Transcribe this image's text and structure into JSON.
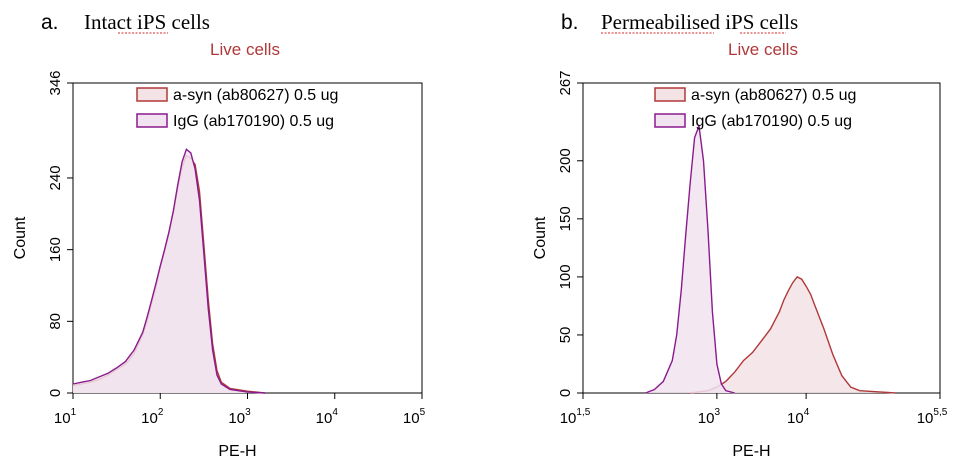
{
  "colors": {
    "asyn": "#b0383a",
    "igg": "#8a1a8e",
    "asyn_fill": "#f3e3e5",
    "igg_fill": "#f1e3ef",
    "subtitle": "#b0383a"
  },
  "chart_data": [
    {
      "type": "area",
      "panel_letter": "a.",
      "title": "Intact iPS cells",
      "subtitle": "Live cells",
      "xlabel": "PE-H",
      "ylabel": "Count",
      "xscale": "log",
      "xlim": [
        1,
        5
      ],
      "ylim": [
        0,
        346
      ],
      "xticks": [
        {
          "base": "10",
          "exp": "1",
          "v": 1
        },
        {
          "base": "10",
          "exp": "2",
          "v": 2
        },
        {
          "base": "10",
          "exp": "3",
          "v": 3
        },
        {
          "base": "10",
          "exp": "4",
          "v": 4
        },
        {
          "base": "10",
          "exp": "5",
          "v": 5
        }
      ],
      "yticks": [
        "0",
        "80",
        "160",
        "240",
        "346"
      ],
      "ytick_values": [
        0,
        80,
        160,
        240,
        346
      ],
      "legend_position": "top-right",
      "series": [
        {
          "name": "a-syn (ab80627) 0.5 ug",
          "color_key": "asyn",
          "x": [
            1.0,
            1.1,
            1.2,
            1.3,
            1.4,
            1.5,
            1.6,
            1.7,
            1.8,
            1.85,
            1.9,
            1.95,
            2.0,
            2.05,
            2.1,
            2.15,
            2.2,
            2.25,
            2.3,
            2.35,
            2.4,
            2.45,
            2.5,
            2.55,
            2.6,
            2.65,
            2.7,
            2.8,
            3.0,
            3.2
          ],
          "y": [
            8,
            10,
            12,
            15,
            20,
            26,
            32,
            44,
            65,
            80,
            100,
            118,
            140,
            158,
            178,
            200,
            228,
            252,
            265,
            262,
            255,
            225,
            165,
            105,
            55,
            25,
            12,
            5,
            2,
            0
          ]
        },
        {
          "name": "IgG (ab170190) 0.5 ug",
          "color_key": "igg",
          "x": [
            1.0,
            1.1,
            1.2,
            1.3,
            1.4,
            1.5,
            1.6,
            1.7,
            1.8,
            1.85,
            1.9,
            1.95,
            2.0,
            2.05,
            2.1,
            2.15,
            2.2,
            2.25,
            2.3,
            2.35,
            2.4,
            2.45,
            2.5,
            2.55,
            2.6,
            2.65,
            2.7,
            2.8,
            3.0,
            3.2
          ],
          "y": [
            10,
            12,
            14,
            18,
            22,
            28,
            35,
            48,
            68,
            85,
            103,
            122,
            142,
            160,
            180,
            203,
            232,
            258,
            272,
            268,
            250,
            215,
            155,
            95,
            48,
            20,
            10,
            4,
            1,
            0
          ]
        }
      ]
    },
    {
      "type": "area",
      "panel_letter": "b.",
      "title": "Permeabilised iPS cells",
      "subtitle": "Live cells",
      "xlabel": "PE-H",
      "ylabel": "Count",
      "xscale": "log",
      "xlim": [
        1.5,
        5.5
      ],
      "ylim": [
        0,
        267
      ],
      "xticks": [
        {
          "base": "10",
          "exp": "1,5",
          "v": 1.5
        },
        {
          "base": "10",
          "exp": "3",
          "v": 3
        },
        {
          "base": "10",
          "exp": "4",
          "v": 4
        },
        {
          "base": "10",
          "exp": "5,5",
          "v": 5.5
        }
      ],
      "yticks": [
        "0",
        "50",
        "100",
        "150",
        "200",
        "267"
      ],
      "ytick_values": [
        0,
        50,
        100,
        150,
        200,
        267
      ],
      "legend_position": "top-right",
      "series": [
        {
          "name": "a-syn (ab80627) 0.5 ug",
          "color_key": "asyn",
          "x": [
            2.7,
            2.9,
            3.0,
            3.1,
            3.2,
            3.3,
            3.4,
            3.5,
            3.6,
            3.7,
            3.75,
            3.8,
            3.85,
            3.9,
            3.95,
            4.0,
            4.05,
            4.1,
            4.2,
            4.3,
            4.4,
            4.5,
            4.6,
            4.8,
            5.0
          ],
          "y": [
            0,
            2,
            5,
            10,
            18,
            28,
            35,
            45,
            55,
            70,
            80,
            88,
            95,
            100,
            98,
            92,
            85,
            75,
            55,
            33,
            15,
            5,
            2,
            1,
            0
          ]
        },
        {
          "name": "IgG (ab170190) 0.5 ug",
          "color_key": "igg",
          "x": [
            2.2,
            2.3,
            2.4,
            2.5,
            2.55,
            2.6,
            2.65,
            2.7,
            2.75,
            2.8,
            2.85,
            2.9,
            2.95,
            3.0,
            3.05,
            3.1,
            3.2
          ],
          "y": [
            0,
            3,
            10,
            28,
            50,
            88,
            135,
            180,
            220,
            230,
            200,
            140,
            70,
            25,
            8,
            2,
            0
          ]
        }
      ]
    }
  ]
}
